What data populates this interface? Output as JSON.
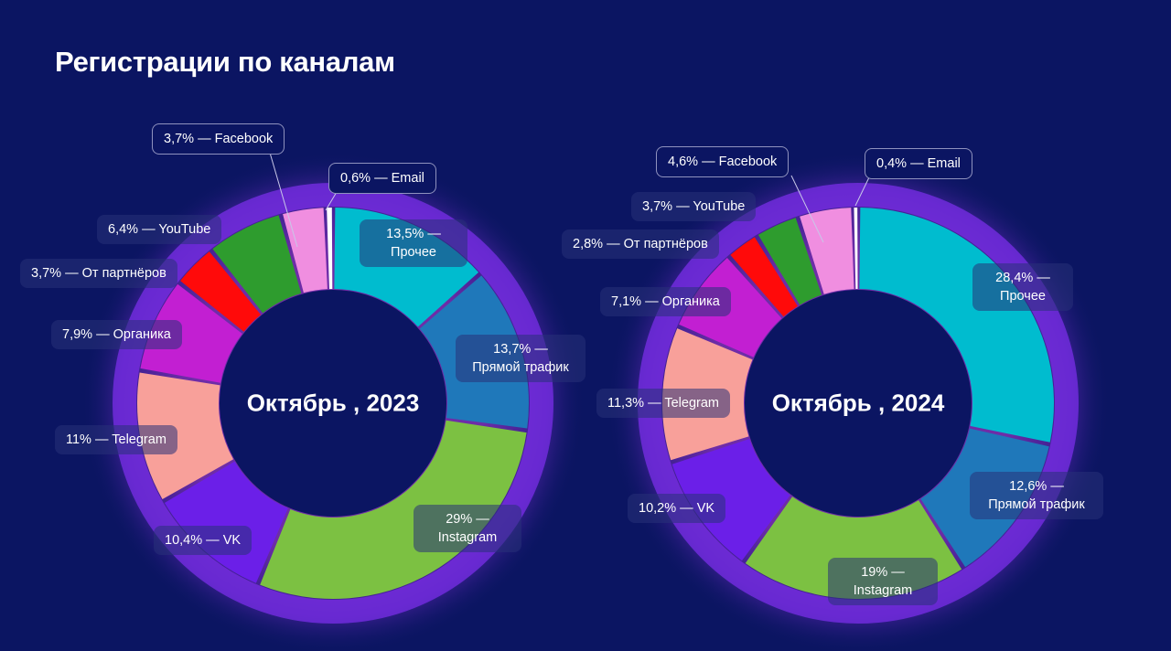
{
  "title": "Регистрации по каналам",
  "chart_data": [
    {
      "type": "pie",
      "title": "Октябрь , 2023",
      "series": [
        {
          "name": "Прочее",
          "value": 13.5,
          "pct": "13,5% —",
          "color": "#00bccf"
        },
        {
          "name": "Прямой трафик",
          "value": 13.7,
          "pct": "13,7% —",
          "color": "#1f78ba"
        },
        {
          "name": "Instagram",
          "value": 29,
          "pct": "29% —",
          "color": "#7cc142"
        },
        {
          "name": "VK",
          "value": 10.4,
          "pct": "10,4% —",
          "color": "#6b1fe8"
        },
        {
          "name": "Telegram",
          "value": 11,
          "pct": "11% —",
          "color": "#f8a09a"
        },
        {
          "name": "Органика",
          "value": 7.9,
          "pct": "7,9% —",
          "color": "#c21fd2"
        },
        {
          "name": "От партнёров",
          "value": 3.7,
          "pct": "3,7% —",
          "color": "#ff0a0a"
        },
        {
          "name": "YouTube",
          "value": 6.4,
          "pct": "6,4% —",
          "color": "#2e9c2e"
        },
        {
          "name": "Facebook",
          "value": 3.7,
          "pct": "3,7% —",
          "color": "#f08ee0"
        },
        {
          "name": "Email",
          "value": 0.6,
          "pct": "0,6% —",
          "color": "#ffffff"
        }
      ]
    },
    {
      "type": "pie",
      "title": "Октябрь , 2024",
      "series": [
        {
          "name": "Прочее",
          "value": 28.4,
          "pct": "28,4% —",
          "color": "#00bccf"
        },
        {
          "name": "Прямой трафик",
          "value": 12.6,
          "pct": "12,6% —",
          "color": "#1f78ba"
        },
        {
          "name": "Instagram",
          "value": 19,
          "pct": "19% —",
          "color": "#7cc142"
        },
        {
          "name": "VK",
          "value": 10.2,
          "pct": "10,2% —",
          "color": "#6b1fe8"
        },
        {
          "name": "Telegram",
          "value": 11.3,
          "pct": "11,3% —",
          "color": "#f8a09a"
        },
        {
          "name": "Органика",
          "value": 7.1,
          "pct": "7,1% —",
          "color": "#c21fd2"
        },
        {
          "name": "От партнёров",
          "value": 2.8,
          "pct": "2,8% —",
          "color": "#ff0a0a"
        },
        {
          "name": "YouTube",
          "value": 3.7,
          "pct": "3,7% —",
          "color": "#2e9c2e"
        },
        {
          "name": "Facebook",
          "value": 4.6,
          "pct": "4,6% —",
          "color": "#f08ee0"
        },
        {
          "name": "Email",
          "value": 0.4,
          "pct": "0,4% —",
          "color": "#ffffff"
        }
      ]
    }
  ]
}
